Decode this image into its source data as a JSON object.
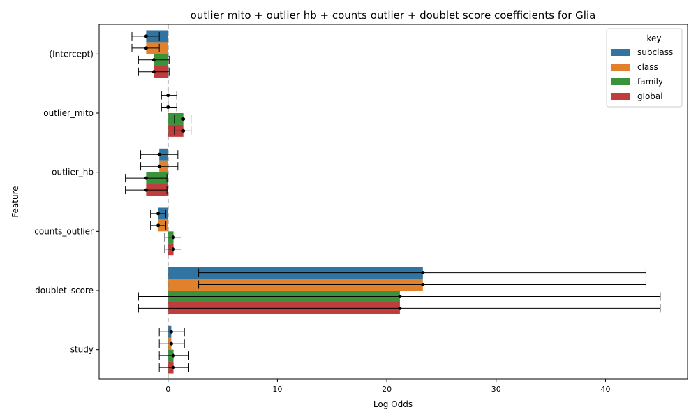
{
  "chart_data": {
    "type": "bar",
    "orientation": "horizontal",
    "title": "outlier mito + outlier hb + counts outlier + doublet score coefficients for Glia",
    "xlabel": "Log Odds",
    "ylabel": "Feature",
    "xlim": [
      -6.3,
      47.5
    ],
    "x_ticks": [
      0,
      10,
      20,
      30,
      40
    ],
    "x_tick_labels": [
      "0",
      "10",
      "20",
      "30",
      "40"
    ],
    "reference_line_x": 0,
    "categories": [
      "(Intercept)",
      "outlier_mito",
      "outlier_hb",
      "counts_outlier",
      "doublet_score",
      "study"
    ],
    "legend": {
      "title": "key",
      "position": "top-right"
    },
    "series": [
      {
        "name": "subclass",
        "color": "#3274a1",
        "values": [
          -2.0,
          0.0,
          -0.8,
          -0.9,
          23.3,
          0.3
        ],
        "ci_low": [
          -3.3,
          -0.6,
          -2.5,
          -1.6,
          2.8,
          -0.8
        ],
        "ci_high": [
          -0.8,
          0.8,
          0.9,
          -0.2,
          43.7,
          1.5
        ]
      },
      {
        "name": "class",
        "color": "#e1812c",
        "values": [
          -2.0,
          0.0,
          -0.8,
          -0.9,
          23.3,
          0.3
        ],
        "ci_low": [
          -3.3,
          -0.6,
          -2.5,
          -1.6,
          2.8,
          -0.8
        ],
        "ci_high": [
          -0.8,
          0.8,
          0.9,
          -0.2,
          43.7,
          1.5
        ]
      },
      {
        "name": "family",
        "color": "#3a923a",
        "values": [
          -1.3,
          1.4,
          -2.0,
          0.5,
          21.2,
          0.5
        ],
        "ci_low": [
          -2.7,
          0.6,
          -3.9,
          -0.3,
          -2.7,
          -0.8
        ],
        "ci_high": [
          0.1,
          2.1,
          -0.1,
          1.2,
          45.0,
          1.9
        ]
      },
      {
        "name": "global",
        "color": "#c03d3e",
        "values": [
          -1.3,
          1.4,
          -2.0,
          0.5,
          21.2,
          0.5
        ],
        "ci_low": [
          -2.7,
          0.6,
          -3.9,
          -0.3,
          -2.7,
          -0.8
        ],
        "ci_high": [
          0.1,
          2.1,
          -0.1,
          1.2,
          45.0,
          1.9
        ]
      }
    ]
  }
}
